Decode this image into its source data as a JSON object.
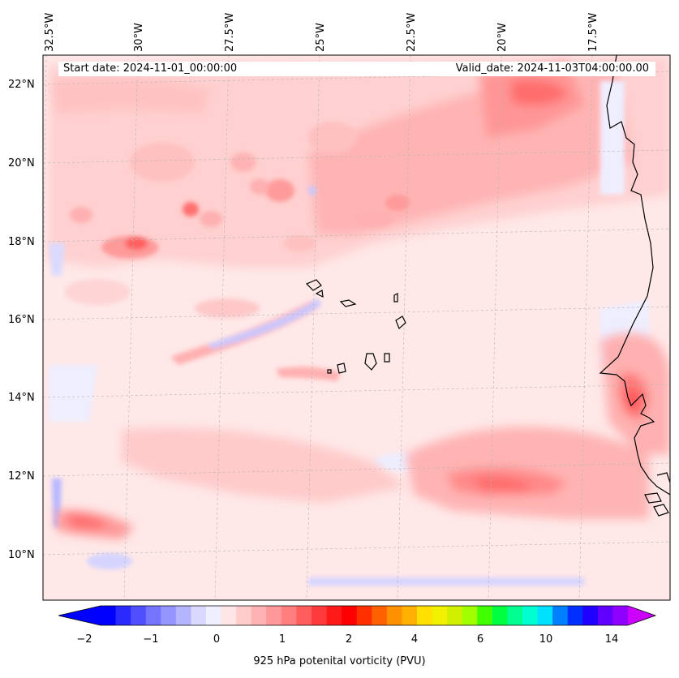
{
  "header": {
    "start_date": "Start date: 2024-11-01_00:00:00",
    "valid_date": "Valid_date: 2024-11-03T04:00:00.00"
  },
  "axes": {
    "lon_labels": [
      "32.5°W",
      "30°W",
      "27.5°W",
      "25°W",
      "22.5°W",
      "20°W",
      "17.5°W"
    ],
    "lat_labels": [
      "22°N",
      "20°N",
      "18°N",
      "16°N",
      "14°N",
      "12°N",
      "10°N"
    ]
  },
  "colorbar": {
    "label": "925 hPa potenital vorticity (PVU)",
    "tick_labels": [
      "−2",
      "−1",
      "0",
      "1",
      "2",
      "4",
      "6",
      "10",
      "14"
    ],
    "colors": [
      "#0000ff",
      "#2a2aff",
      "#4f4fff",
      "#7474ff",
      "#9595ff",
      "#b4b4ff",
      "#d9d9ff",
      "#efefff",
      "#ffe6e6",
      "#ffcccc",
      "#ffb2b2",
      "#ff9898",
      "#ff7e7e",
      "#ff5c5c",
      "#ff3a3a",
      "#ff1a1a",
      "#ff0000",
      "#ff3000",
      "#ff6000",
      "#ff9000",
      "#ffb000",
      "#ffe000",
      "#f0f000",
      "#d0f000",
      "#a0ff00",
      "#40ff00",
      "#00ff40",
      "#00ff90",
      "#00ffd0",
      "#00e0ff",
      "#0080ff",
      "#0030ff",
      "#2000ff",
      "#6000ff",
      "#9000ff"
    ],
    "under_color": "#0000ff",
    "over_color": "#cc00ff"
  },
  "colors": {
    "background_field": "#ffe8e8",
    "light_pink": "#ffd0d0",
    "medium_pink": "#ffb0b0",
    "red": "#ff7878",
    "strong_red": "#ff5555",
    "light_blue": "#eeeeff",
    "blue": "#c8c8ff"
  }
}
